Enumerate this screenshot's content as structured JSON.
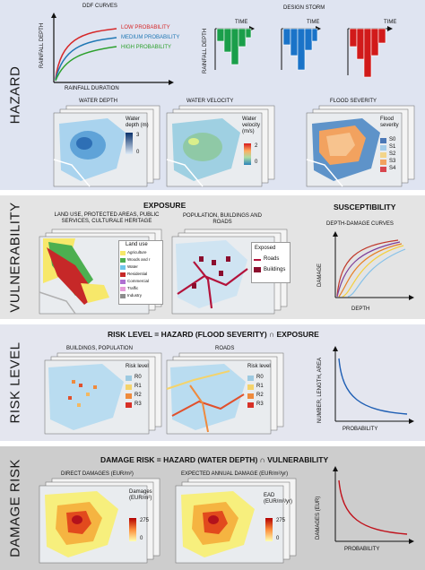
{
  "colors": {
    "hazard_bg": "#dfe4f1",
    "vuln_bg": "#e4e4e4",
    "risk_bg": "#e4e6ef",
    "damage_bg": "#cdcdcd",
    "low_prob": "#d62728",
    "med_prob": "#1f77b4",
    "high_prob": "#2ca02c",
    "storm_green": "#1a9e4a",
    "storm_blue": "#1a73c8",
    "storm_red": "#d11a1a"
  },
  "hazard": {
    "title": "HAZARD",
    "ddf": {
      "title": "DDF CURVES",
      "ylabel": "RAINFALL DEPTH",
      "xlabel": "RAINFALL DURATION",
      "legend": [
        "LOW PROBABILITY",
        "MEDIUM PROBABILITY",
        "HIGH PROBABILITY"
      ]
    },
    "storm": {
      "title": "DESIGN STORM",
      "time_label": "TIME",
      "ylabel": "RAINFALL DEPTH"
    },
    "maps": {
      "water_depth": {
        "title": "WATER DEPTH",
        "legend_title": "Water depth (m)",
        "max": "3",
        "min": "0"
      },
      "water_velocity": {
        "title": "WATER VELOCITY",
        "legend_title": "Water velocity (m/s)",
        "max": "2",
        "min": "0"
      },
      "flood_severity": {
        "title": "FLOOD SEVERITY",
        "legend_title": "Flood severity",
        "classes": [
          "S0",
          "S1",
          "S2",
          "S3",
          "S4"
        ]
      }
    }
  },
  "vulnerability": {
    "title": "VULNERABILITY",
    "exposure_title": "EXPOSURE",
    "susceptibility_title": "SUSCEPTIBILITY",
    "landuse_caption": "LAND USE, PROTECTED AREAS, PUBLIC SERVICES, CULTURALE HERITAGE",
    "landuse_legend_title": "Land use",
    "landuse_classes": [
      "Agriculture",
      "Woods and r",
      "Water",
      "Residential",
      "Commercial",
      "Traffic",
      "Industry"
    ],
    "pop_caption": "POPULATION, BUILDINGS AND ROADS",
    "exposed_legend_title": "Exposed",
    "exposed_classes": [
      "Roads",
      "Buildings"
    ],
    "curves_title": "DEPTH-DAMAGE CURVES",
    "curves_ylabel": "DAMAGE",
    "curves_xlabel": "DEPTH"
  },
  "risk": {
    "title": "RISK LEVEL",
    "header": "RISK LEVEL = HAZARD (FLOOD SEVERITY) ∩ EXPOSURE",
    "buildings_caption": "BUILDINGS, POPULATION",
    "roads_caption": "ROADS",
    "legend_title": "Risk level",
    "classes": [
      "R0",
      "R1",
      "R2",
      "R3"
    ],
    "ylabel": "NUMBER, LENGTH, AREA",
    "xlabel": "PROBABILITY"
  },
  "damage": {
    "title": "DAMAGE RISK",
    "header": "DAMAGE RISK = HAZARD (WATER DEPTH) ∩ VULNERABILITY",
    "direct_caption": "DIRECT DAMAGES (EUR/m²)",
    "ead_caption": "EXPECTED ANNUAL DAMAGE (EUR/m²/yr)",
    "direct_legend_title": "Damages (EUR/m²)",
    "ead_legend_title": "EAD (EUR/m²/yr)",
    "max": "275",
    "min": "0",
    "ylabel": "DAMAGES (EUR)",
    "xlabel": "PROBABILITY"
  }
}
